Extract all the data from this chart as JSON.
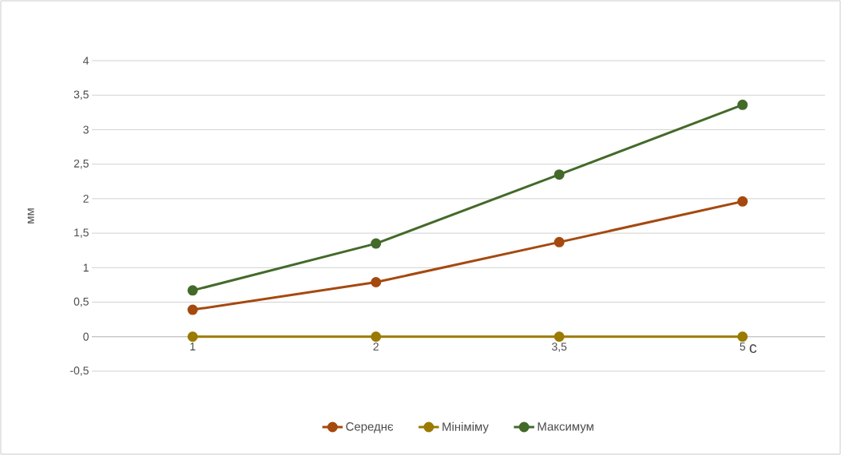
{
  "chart_data": {
    "type": "line",
    "xlabel": "с",
    "ylabel": "мм",
    "categories": [
      "1",
      "2",
      "3,5",
      "5"
    ],
    "series": [
      {
        "name": "Середнє",
        "color": "#a5490f",
        "values": [
          0.39,
          0.79,
          1.37,
          1.96
        ]
      },
      {
        "name": "Мініміму",
        "color": "#9c7a00",
        "values": [
          0,
          0,
          0,
          0
        ]
      },
      {
        "name": "Максимум",
        "color": "#436a2a",
        "values": [
          0.67,
          1.35,
          2.35,
          3.36
        ]
      }
    ],
    "ylim": [
      -0.5,
      4
    ],
    "yticks": [
      {
        "value": -0.5,
        "label": "-0,5"
      },
      0,
      {
        "value": 0.5,
        "label": "0,5"
      },
      1,
      {
        "value": 1.5,
        "label": "1,5"
      },
      2,
      {
        "value": 2.5,
        "label": "2,5"
      },
      3,
      {
        "value": 3.5,
        "label": "3,5"
      },
      4
    ],
    "grid": "y",
    "legend": "bottom",
    "marker": "circle",
    "line_style": "solid"
  }
}
